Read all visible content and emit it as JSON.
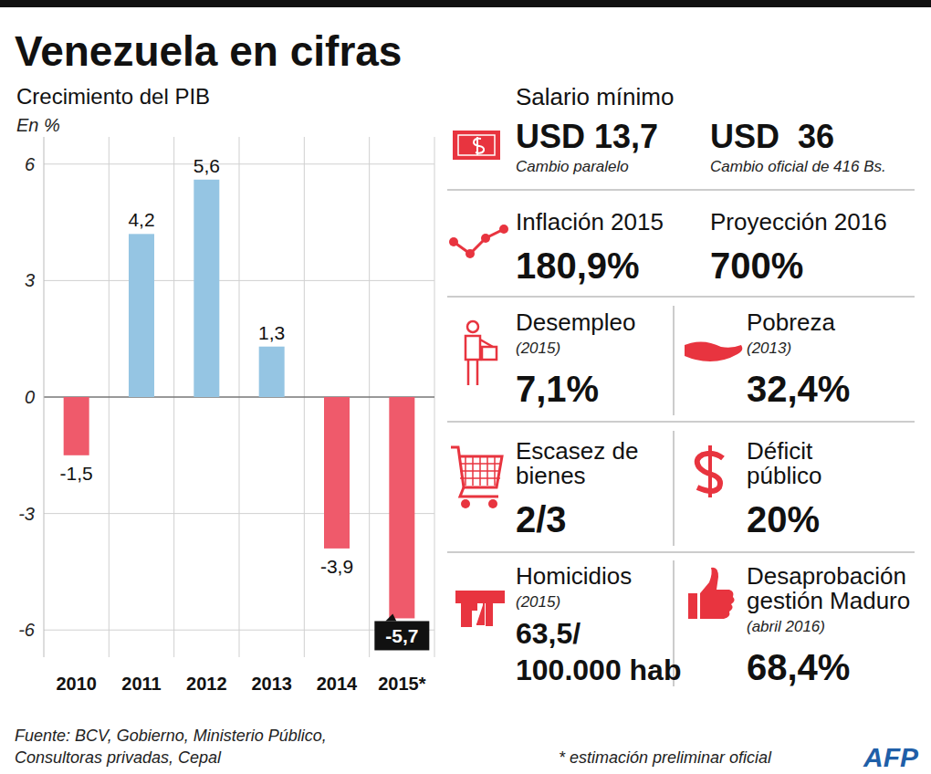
{
  "title": "Venezuela en cifras",
  "chart_data": {
    "type": "bar",
    "title": "Crecimiento del PIB",
    "subtitle": "En %",
    "categories": [
      "2010",
      "2011",
      "2012",
      "2013",
      "2014",
      "2015*"
    ],
    "values": [
      -1.5,
      4.2,
      5.6,
      1.3,
      -3.9,
      -5.7
    ],
    "value_labels": [
      "-1,5",
      "4,2",
      "5,6",
      "1,3",
      "-3,9",
      "-5,7"
    ],
    "colors": [
      "#ef5a6b",
      "#95c5e3",
      "#95c5e3",
      "#95c5e3",
      "#ef5a6b",
      "#ef5a6b"
    ],
    "ylim": [
      -6.7,
      6.7
    ],
    "yticks": [
      -6,
      -3,
      0,
      3,
      6
    ],
    "grid": true,
    "data_labels": true
  },
  "stats": {
    "rows": [
      {
        "label": [
          "Salario mínimo"
        ],
        "cells": [
          {
            "value": [
              "USD 13,7"
            ],
            "note": "Cambio paralelo"
          },
          {
            "value": [
              "USD  36"
            ],
            "note": "Cambio oficial de 416 Bs."
          }
        ]
      },
      {
        "cells": [
          {
            "label": [
              "Inflación 2015"
            ],
            "value": [
              "180,9%"
            ]
          },
          {
            "label": [
              "Proyección 2016"
            ],
            "value": [
              "700%"
            ]
          }
        ]
      },
      {
        "cells": [
          {
            "label": [
              "Desempleo"
            ],
            "note": "(2015)",
            "value": [
              "7,1%"
            ]
          },
          {
            "label": [
              "Pobreza"
            ],
            "note": "(2013)",
            "value": [
              "32,4%"
            ]
          }
        ]
      },
      {
        "cells": [
          {
            "label": [
              "Escasez de",
              "bienes"
            ],
            "value": [
              "2/3"
            ]
          },
          {
            "label": [
              "Déficit",
              "público"
            ],
            "value": [
              "20%"
            ]
          }
        ]
      },
      {
        "cells": [
          {
            "label": [
              "Homicidios"
            ],
            "note": "(2015)",
            "value": [
              "63,5/",
              "100.000 hab"
            ]
          },
          {
            "label": [
              "Desaprobación",
              "gestión Maduro"
            ],
            "note": "(abril 2016)",
            "value": [
              "68,4%"
            ]
          }
        ]
      }
    ]
  },
  "footer": {
    "source": [
      "Fuente: BCV, Gobierno, Ministerio Público,",
      "Consultoras privadas, Cepal"
    ],
    "note": "* estimación preliminar oficial",
    "credit": "AFP"
  }
}
